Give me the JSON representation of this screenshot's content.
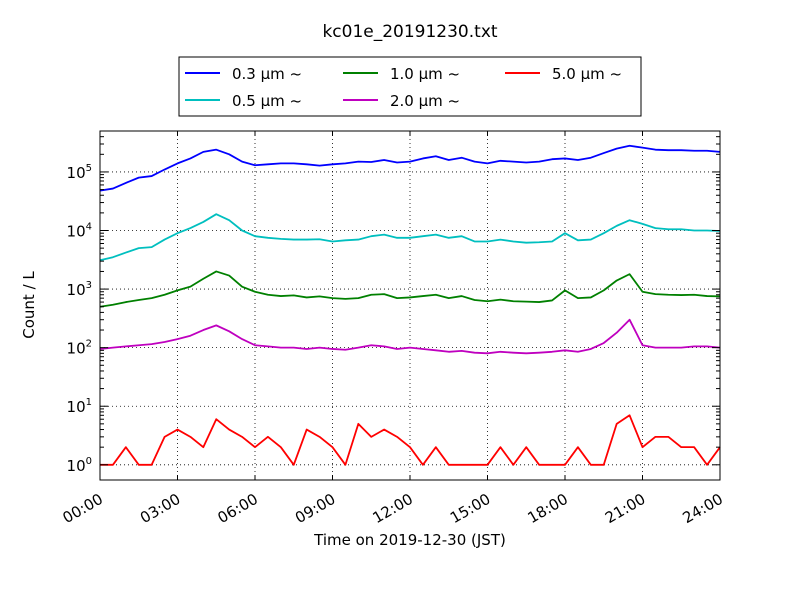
{
  "chart_data": {
    "type": "line",
    "title": "kc01e_20191230.txt",
    "xlabel": "Time on 2019-12-30 (JST)",
    "ylabel": "Count / L",
    "x_tick_labels": [
      "00:00",
      "03:00",
      "06:00",
      "09:00",
      "12:00",
      "15:00",
      "18:00",
      "21:00",
      "24:00"
    ],
    "y_tick_labels": [
      {
        "base": "10",
        "exp": "0"
      },
      {
        "base": "10",
        "exp": "1"
      },
      {
        "base": "10",
        "exp": "2"
      },
      {
        "base": "10",
        "exp": "3"
      },
      {
        "base": "10",
        "exp": "4"
      },
      {
        "base": "10",
        "exp": "5"
      }
    ],
    "x_range_hours": [
      0,
      24
    ],
    "y_scale": "log",
    "ylim": [
      0.55,
      500000
    ],
    "grid": true,
    "legend_placement": "top-center",
    "series": [
      {
        "name": "0.3 μm ~",
        "color": "#0000ff",
        "x": [
          0,
          0.5,
          1,
          1.5,
          2,
          2.5,
          3,
          3.5,
          4,
          4.5,
          5,
          5.5,
          6,
          6.5,
          7,
          7.5,
          8,
          8.5,
          9,
          9.5,
          10,
          10.5,
          11,
          11.5,
          12,
          12.5,
          13,
          13.5,
          14,
          14.5,
          15,
          15.5,
          16,
          16.5,
          17,
          17.5,
          18,
          18.5,
          19,
          19.5,
          20,
          20.5,
          21,
          21.5,
          22,
          22.5,
          23,
          23.5,
          24
        ],
        "values": [
          48000,
          52000,
          65000,
          80000,
          85000,
          110000,
          140000,
          170000,
          220000,
          240000,
          200000,
          150000,
          130000,
          135000,
          140000,
          140000,
          135000,
          128000,
          135000,
          140000,
          150000,
          148000,
          160000,
          145000,
          150000,
          170000,
          185000,
          160000,
          175000,
          150000,
          140000,
          155000,
          150000,
          145000,
          150000,
          165000,
          170000,
          160000,
          175000,
          210000,
          250000,
          280000,
          260000,
          240000,
          235000,
          235000,
          230000,
          230000,
          220000
        ]
      },
      {
        "name": "0.5 μm ~",
        "color": "#00bfbf",
        "x": [
          0,
          0.5,
          1,
          1.5,
          2,
          2.5,
          3,
          3.5,
          4,
          4.5,
          5,
          5.5,
          6,
          6.5,
          7,
          7.5,
          8,
          8.5,
          9,
          9.5,
          10,
          10.5,
          11,
          11.5,
          12,
          12.5,
          13,
          13.5,
          14,
          14.5,
          15,
          15.5,
          16,
          16.5,
          17,
          17.5,
          18,
          18.5,
          19,
          19.5,
          20,
          20.5,
          21,
          21.5,
          22,
          22.5,
          23,
          23.5,
          24
        ],
        "values": [
          3100,
          3500,
          4200,
          5000,
          5200,
          7000,
          9000,
          11000,
          14000,
          19000,
          15000,
          10000,
          8000,
          7500,
          7200,
          7000,
          7000,
          7100,
          6500,
          6800,
          7000,
          8000,
          8500,
          7500,
          7500,
          8000,
          8500,
          7500,
          8000,
          6500,
          6500,
          7000,
          6500,
          6200,
          6300,
          6500,
          9000,
          6800,
          7000,
          9000,
          12000,
          15000,
          13000,
          11000,
          10500,
          10500,
          10000,
          10000,
          9800
        ]
      },
      {
        "name": "1.0 μm ~",
        "color": "#008000",
        "x": [
          0,
          0.5,
          1,
          1.5,
          2,
          2.5,
          3,
          3.5,
          4,
          4.5,
          5,
          5.5,
          6,
          6.5,
          7,
          7.5,
          8,
          8.5,
          9,
          9.5,
          10,
          10.5,
          11,
          11.5,
          12,
          12.5,
          13,
          13.5,
          14,
          14.5,
          15,
          15.5,
          16,
          16.5,
          17,
          17.5,
          18,
          18.5,
          19,
          19.5,
          20,
          20.5,
          21,
          21.5,
          22,
          22.5,
          23,
          23.5,
          24
        ],
        "values": [
          500,
          540,
          600,
          650,
          700,
          800,
          950,
          1100,
          1500,
          2000,
          1700,
          1100,
          900,
          800,
          760,
          780,
          720,
          750,
          700,
          680,
          700,
          800,
          820,
          700,
          720,
          760,
          800,
          700,
          760,
          650,
          620,
          660,
          620,
          610,
          600,
          640,
          950,
          700,
          720,
          950,
          1400,
          1800,
          900,
          820,
          800,
          790,
          800,
          760,
          750
        ]
      },
      {
        "name": "2.0 μm ~",
        "color": "#bf00bf",
        "x": [
          0,
          0.5,
          1,
          1.5,
          2,
          2.5,
          3,
          3.5,
          4,
          4.5,
          5,
          5.5,
          6,
          6.5,
          7,
          7.5,
          8,
          8.5,
          9,
          9.5,
          10,
          10.5,
          11,
          11.5,
          12,
          12.5,
          13,
          13.5,
          14,
          14.5,
          15,
          15.5,
          16,
          16.5,
          17,
          17.5,
          18,
          18.5,
          19,
          19.5,
          20,
          20.5,
          21,
          21.5,
          22,
          22.5,
          23,
          23.5,
          24
        ],
        "values": [
          95,
          100,
          105,
          110,
          115,
          125,
          140,
          160,
          200,
          240,
          190,
          140,
          110,
          105,
          100,
          100,
          95,
          100,
          95,
          92,
          100,
          110,
          105,
          95,
          100,
          95,
          90,
          85,
          88,
          82,
          80,
          85,
          82,
          80,
          82,
          85,
          90,
          85,
          95,
          120,
          180,
          300,
          110,
          100,
          100,
          100,
          105,
          105,
          100
        ]
      },
      {
        "name": "5.0 μm ~",
        "color": "#ff0000",
        "x": [
          0,
          0.5,
          1,
          1.5,
          2,
          2.5,
          3,
          3.5,
          4,
          4.5,
          5,
          5.5,
          6,
          6.5,
          7,
          7.5,
          8,
          8.5,
          9,
          9.5,
          10,
          10.5,
          11,
          11.5,
          12,
          12.5,
          13,
          13.5,
          14,
          14.5,
          15,
          15.5,
          16,
          16.5,
          17,
          17.5,
          18,
          18.5,
          19,
          19.5,
          20,
          20.5,
          21,
          21.5,
          22,
          22.5,
          23,
          23.5,
          24
        ],
        "values": [
          1,
          1,
          2,
          1,
          1,
          3,
          4,
          3,
          2,
          6,
          4,
          3,
          2,
          3,
          2,
          1,
          4,
          3,
          2,
          1,
          5,
          3,
          4,
          3,
          2,
          1,
          2,
          1,
          1,
          1,
          1,
          2,
          1,
          2,
          1,
          1,
          1,
          2,
          1,
          1,
          5,
          7,
          2,
          3,
          3,
          2,
          2,
          1,
          2
        ]
      }
    ]
  }
}
